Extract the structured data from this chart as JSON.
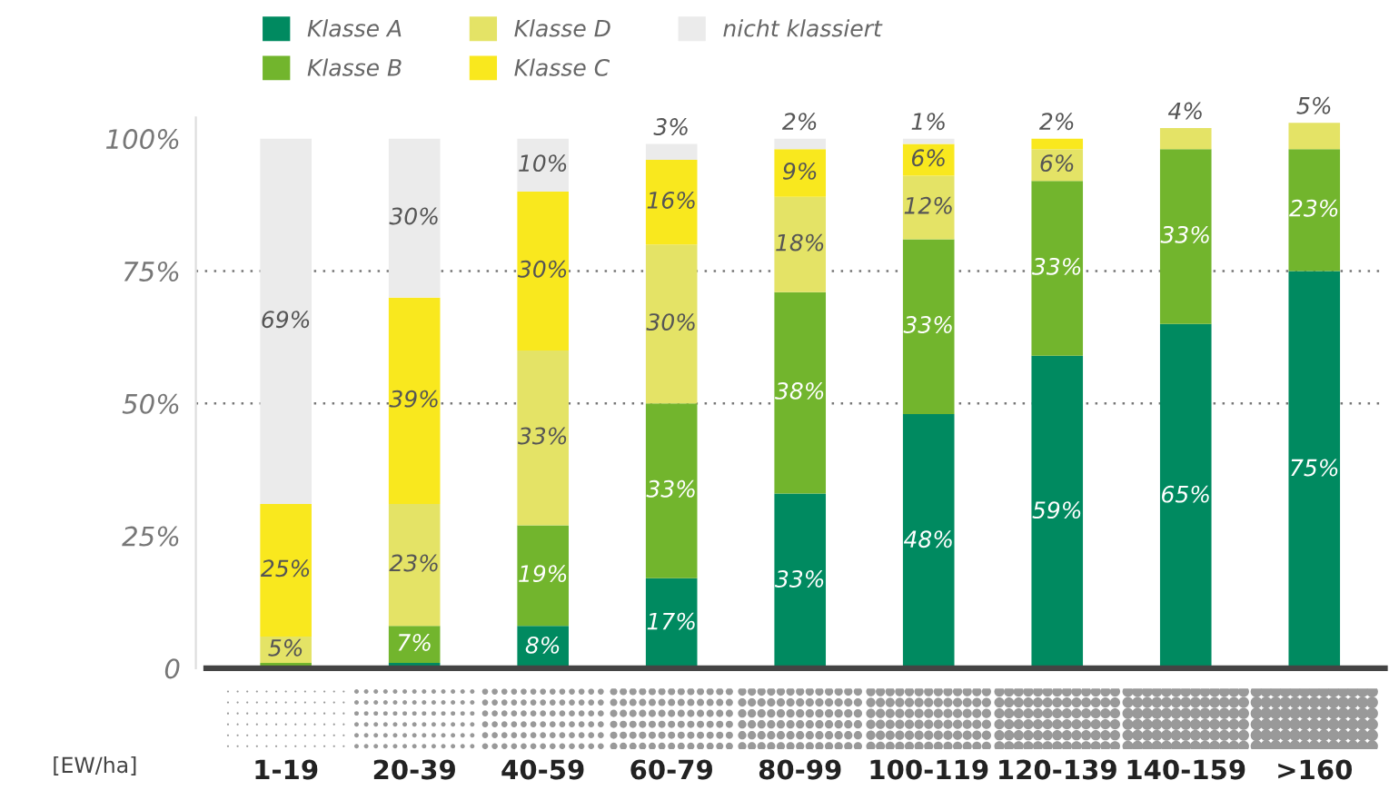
{
  "chart_data": {
    "type": "bar",
    "stacked": true,
    "xlabel": "[EW/ha]",
    "categories": [
      "1-19",
      "20-39",
      "40-59",
      "60-79",
      "80-99",
      "100-119",
      "120-139",
      "140-159",
      ">160"
    ],
    "series": [
      {
        "name": "Klasse A",
        "color": "#008a60",
        "values": [
          0,
          1,
          8,
          17,
          33,
          48,
          59,
          65,
          75
        ],
        "value_labels": [
          null,
          null,
          "8%",
          "17%",
          "33%",
          "48%",
          "59%",
          "65%",
          "75%"
        ]
      },
      {
        "name": "Klasse B",
        "color": "#72b52d",
        "values": [
          1,
          7,
          19,
          33,
          38,
          33,
          33,
          33,
          23
        ],
        "value_labels": [
          null,
          "7%",
          "19%",
          "33%",
          "38%",
          "33%",
          "33%",
          "33%",
          "23%"
        ]
      },
      {
        "name": "Klasse D",
        "color": "#e4e366",
        "values": [
          5,
          23,
          33,
          30,
          18,
          12,
          6,
          4,
          5
        ],
        "value_labels": [
          "5%",
          "23%",
          "33%",
          "30%",
          "18%",
          "12%",
          "6%",
          "4%",
          "5%"
        ]
      },
      {
        "name": "Klasse C",
        "color": "#f9e81e",
        "values": [
          25,
          39,
          30,
          16,
          9,
          6,
          2,
          null,
          null
        ],
        "value_labels": [
          "25%",
          "39%",
          "30%",
          "16%",
          "9%",
          "6%",
          "2%",
          null,
          null
        ]
      },
      {
        "name": "nicht klassiert",
        "color": "#ebebeb",
        "values": [
          69,
          30,
          10,
          3,
          2,
          1,
          null,
          null,
          null
        ],
        "value_labels": [
          "69%",
          "30%",
          "10%",
          "3%",
          "2%",
          "1%",
          null,
          null,
          null
        ]
      }
    ],
    "ylim": [
      0,
      104
    ],
    "yticks": [
      {
        "value": 0,
        "label": "0"
      },
      {
        "value": 25,
        "label": "25%"
      },
      {
        "value": 50,
        "label": "50%"
      },
      {
        "value": 75,
        "label": "75%"
      },
      {
        "value": 100,
        "label": "100%"
      }
    ],
    "ref_lines": [
      {
        "axis": "y",
        "value": 50,
        "line_style": "dotted",
        "color": "#777777"
      },
      {
        "axis": "y",
        "value": 75,
        "line_style": "dotted",
        "color": "#777777"
      }
    ],
    "grid": false,
    "legend": "top left"
  }
}
